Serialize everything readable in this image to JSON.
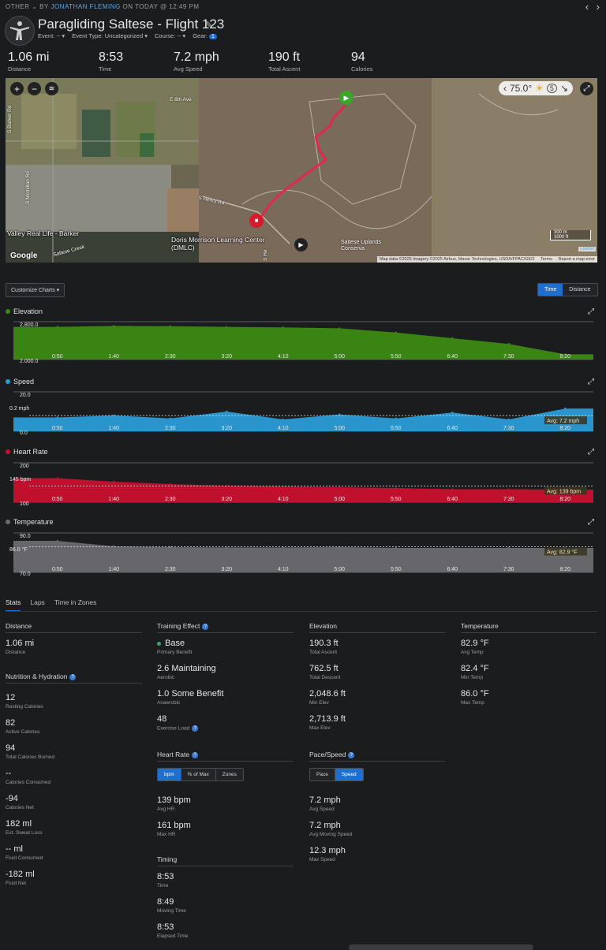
{
  "header": {
    "breadcrumb_category": "OTHER",
    "breadcrumb_by": "BY",
    "breadcrumb_user": "JONATHAN FLEMING",
    "breadcrumb_time": "ON TODAY @ 12:49 PM",
    "title": "Paragliding Saltese - Flight 123",
    "event_label": "Event: --",
    "event_type_label": "Event Type: Uncategorized",
    "course_label": "Course: --",
    "gear_label": "Gear:",
    "gear_count": "1"
  },
  "summary": [
    {
      "value": "1.06 mi",
      "label": "Distance"
    },
    {
      "value": "8:53",
      "label": "Time"
    },
    {
      "value": "7.2 mph",
      "label": "Avg Speed"
    },
    {
      "value": "190 ft",
      "label": "Total Ascent"
    },
    {
      "value": "94",
      "label": "Calories"
    }
  ],
  "map": {
    "temperature": "75.0°",
    "wind": "5",
    "labels": {
      "e8th": "E 8th Ave",
      "henry": "S Henry Rd",
      "barker": "Valley Real Life - Barker",
      "doris": "Doris Morrison Learning Center (DMLC)",
      "saltese_creek": "Saltese Creek",
      "uplands": "Saltese Uplands Conserva",
      "rd_sb": "S Barker Rd",
      "rd_sm": "S Mcmillan Rd",
      "rd_shr": "S He"
    },
    "scale_m": "300 m",
    "scale_ft": "1000 ft",
    "google": "Google",
    "attribution": "Map data ©2025 Imagery ©2025 Airbus, Maxar Technologies, USDA/FPAC/GEO",
    "terms": "Terms",
    "report": "Report a map error",
    "leaflet": "Leaflet"
  },
  "toolbar": {
    "customize": "Customize Charts",
    "time": "Time",
    "distance": "Distance"
  },
  "x_ticks": [
    "0:50",
    "1:40",
    "2:30",
    "3:20",
    "4:10",
    "5:00",
    "5:50",
    "6:40",
    "7:30",
    "8:20"
  ],
  "charts": {
    "elevation": {
      "title": "Elevation",
      "y_top": "2,800.0",
      "y_bottom": "2,000.0",
      "color": "#3c8a14"
    },
    "speed": {
      "title": "Speed",
      "y_top": "20.0",
      "y_mid": "0.2 mph",
      "y_bottom": "0.0",
      "avg": "Avg: 7.2 mph",
      "color": "#2b9bd6"
    },
    "heart_rate": {
      "title": "Heart Rate",
      "y_top": "200",
      "y_mid": "145 bpm",
      "y_bottom": "100",
      "avg": "Avg: 139 bpm",
      "color": "#c8102e"
    },
    "temperature": {
      "title": "Temperature",
      "y_top": "90.0",
      "y_mid": "86.0 °F",
      "y_bottom": "70.0",
      "avg": "Avg: 82.9 °F",
      "color": "#6b6c70"
    }
  },
  "chart_data": [
    {
      "type": "area",
      "title": "Elevation",
      "xlabel": "",
      "ylabel": "",
      "ylim": [
        2000,
        2800
      ],
      "x": [
        "0:50",
        "1:40",
        "2:30",
        "3:20",
        "4:10",
        "5:00",
        "5:50",
        "6:40",
        "7:30",
        "8:20"
      ],
      "series": [
        {
          "name": "Elevation",
          "values": [
            2690,
            2710,
            2705,
            2690,
            2680,
            2660,
            2570,
            2450,
            2330,
            2110
          ]
        }
      ]
    },
    {
      "type": "area",
      "title": "Speed",
      "xlabel": "",
      "ylabel": "",
      "ylim": [
        0,
        20
      ],
      "x": [
        "0:50",
        "1:40",
        "2:30",
        "3:20",
        "4:10",
        "5:00",
        "5:50",
        "6:40",
        "7:30",
        "8:20"
      ],
      "series": [
        {
          "name": "Speed",
          "values": [
            7.0,
            8.0,
            6.5,
            10.0,
            6.0,
            8.5,
            6.5,
            9.5,
            6.0,
            11.5
          ]
        }
      ]
    },
    {
      "type": "area",
      "title": "Heart Rate",
      "xlabel": "",
      "ylabel": "",
      "ylim": [
        100,
        200
      ],
      "x": [
        "0:50",
        "1:40",
        "2:30",
        "3:20",
        "4:10",
        "5:00",
        "5:50",
        "6:40",
        "7:30",
        "8:20"
      ],
      "series": [
        {
          "name": "Heart Rate",
          "values": [
            161,
            152,
            146,
            142,
            140,
            138,
            136,
            133,
            133,
            132
          ]
        }
      ]
    },
    {
      "type": "area",
      "title": "Temperature",
      "xlabel": "",
      "ylabel": "",
      "ylim": [
        70,
        90
      ],
      "x": [
        "0:50",
        "1:40",
        "2:30",
        "3:20",
        "4:10",
        "5:00",
        "5:50",
        "6:40",
        "7:30",
        "8:20"
      ],
      "series": [
        {
          "name": "Temperature",
          "values": [
            86.0,
            83.2,
            82.8,
            82.6,
            82.6,
            82.8,
            82.4,
            82.4,
            82.4,
            82.4
          ]
        }
      ]
    }
  ],
  "tabs": [
    "Stats",
    "Laps",
    "Time in Zones"
  ],
  "stats": {
    "distance": {
      "title": "Distance",
      "items": [
        {
          "v": "1.06 mi",
          "l": "Distance"
        }
      ]
    },
    "nutrition": {
      "title": "Nutrition & Hydration",
      "items": [
        {
          "v": "12",
          "l": "Resting Calories"
        },
        {
          "v": "82",
          "l": "Active Calories"
        },
        {
          "v": "94",
          "l": "Total Calories Burned"
        },
        {
          "v": "--",
          "l": "Calories Consumed"
        },
        {
          "v": "-94",
          "l": "Calories Net"
        },
        {
          "v": "182 ml",
          "l": "Est. Sweat Loss"
        },
        {
          "v": "-- ml",
          "l": "Fluid Consumed"
        },
        {
          "v": "-182 ml",
          "l": "Fluid Net"
        }
      ]
    },
    "training": {
      "title": "Training Effect",
      "items": [
        {
          "v": "Base",
          "l": "Primary Benefit"
        },
        {
          "v": "2.6 Maintaining",
          "l": "Aerobic"
        },
        {
          "v": "1.0 Some Benefit",
          "l": "Anaerobic"
        },
        {
          "v": "48",
          "l": "Exercise Load"
        }
      ]
    },
    "heart_rate": {
      "title": "Heart Rate",
      "seg": [
        "bpm",
        "% of Max",
        "Zones"
      ],
      "items": [
        {
          "v": "139 bpm",
          "l": "Avg HR"
        },
        {
          "v": "161 bpm",
          "l": "Max HR"
        }
      ]
    },
    "timing": {
      "title": "Timing",
      "items": [
        {
          "v": "8:53",
          "l": "Time"
        },
        {
          "v": "8:49",
          "l": "Moving Time"
        },
        {
          "v": "8:53",
          "l": "Elapsed Time"
        }
      ]
    },
    "elevation": {
      "title": "Elevation",
      "items": [
        {
          "v": "190.3 ft",
          "l": "Total Ascent"
        },
        {
          "v": "762.5 ft",
          "l": "Total Descent"
        },
        {
          "v": "2,048.6 ft",
          "l": "Min Elev"
        },
        {
          "v": "2,713.9 ft",
          "l": "Max Elev"
        }
      ]
    },
    "pace": {
      "title": "Pace/Speed",
      "seg": [
        "Pace",
        "Speed"
      ],
      "items": [
        {
          "v": "7.2 mph",
          "l": "Avg Speed"
        },
        {
          "v": "7.2 mph",
          "l": "Avg Moving Speed"
        },
        {
          "v": "12.3 mph",
          "l": "Max Speed"
        }
      ]
    },
    "temperature": {
      "title": "Temperature",
      "items": [
        {
          "v": "82.9 °F",
          "l": "Avg Temp"
        },
        {
          "v": "82.4 °F",
          "l": "Min Temp"
        },
        {
          "v": "86.0 °F",
          "l": "Max Temp"
        }
      ]
    }
  }
}
